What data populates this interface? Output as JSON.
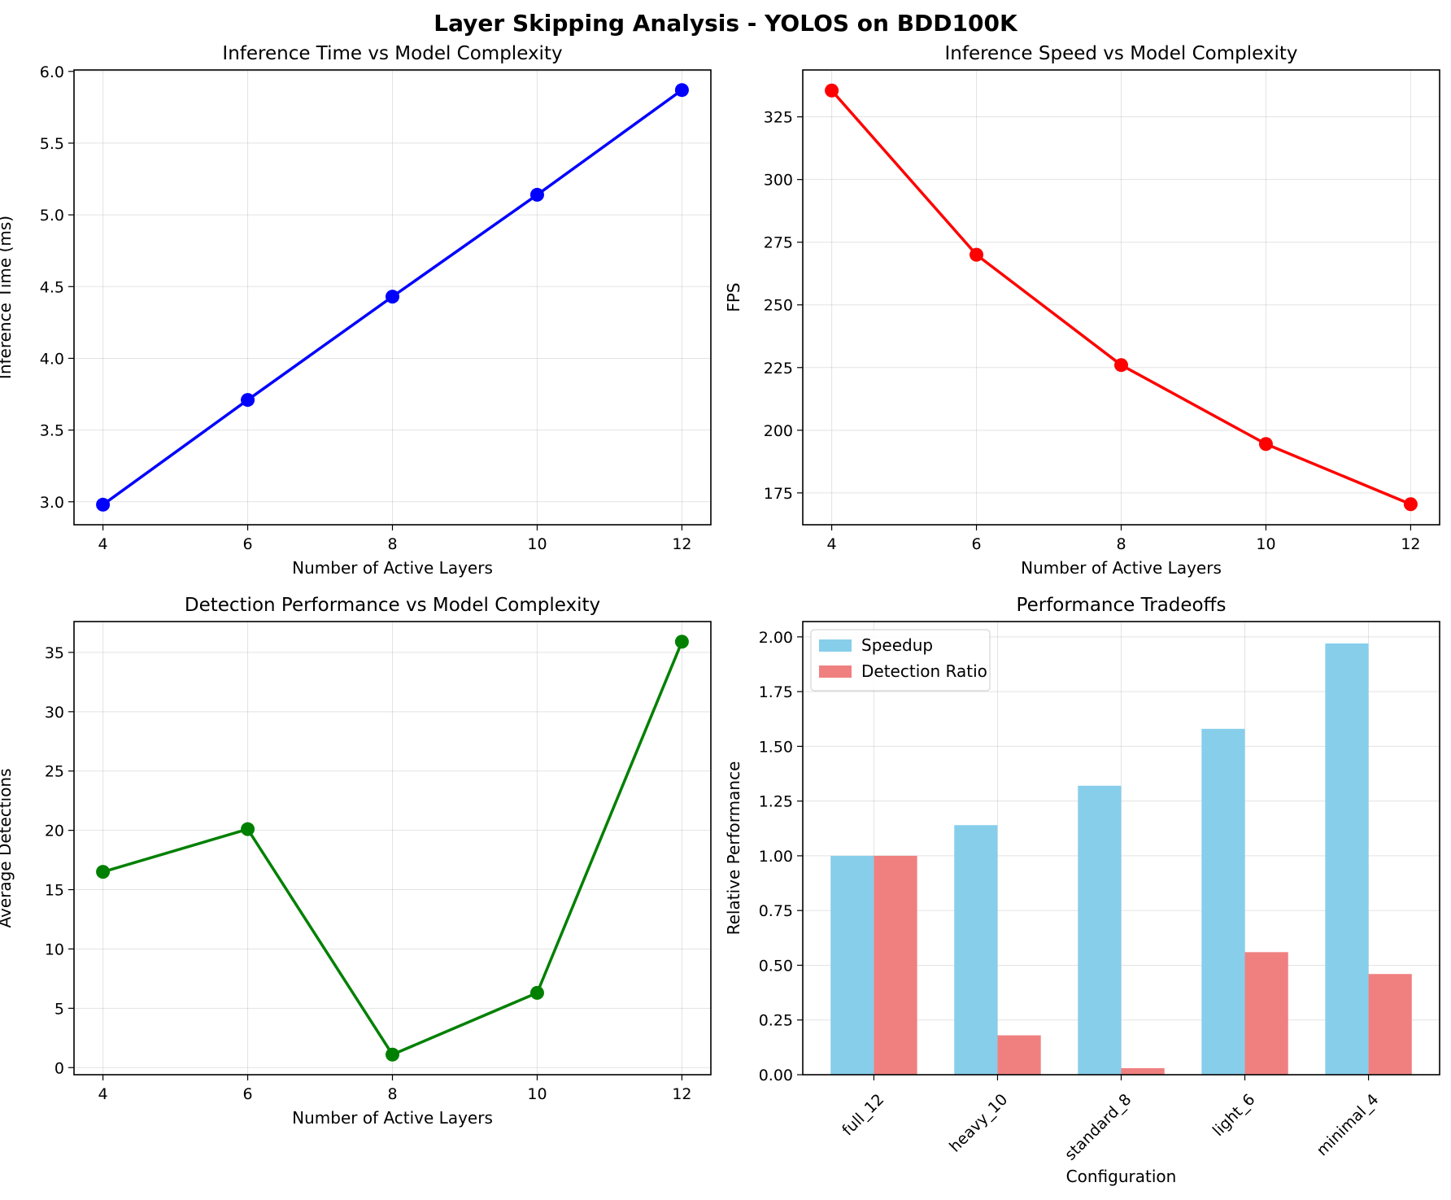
{
  "figure": {
    "title": "Layer Skipping Analysis - YOLOS on BDD100K"
  },
  "chart_data": [
    {
      "type": "line",
      "title": "Inference Time vs Model Complexity",
      "xlabel": "Number of Active Layers",
      "ylabel": "Inference Time (ms)",
      "x": [
        4,
        6,
        8,
        10,
        12
      ],
      "values": [
        2.98,
        3.71,
        4.43,
        5.14,
        5.87
      ],
      "xlim": [
        3.6,
        12.4
      ],
      "ylim": [
        2.84,
        6.01
      ],
      "xticks": [
        4,
        6,
        8,
        10,
        12
      ],
      "yticks": [
        3.0,
        3.5,
        4.0,
        4.5,
        5.0,
        5.5,
        6.0
      ],
      "ytick_decimals": 1,
      "color": "#0000ff",
      "grid": true
    },
    {
      "type": "line",
      "title": "Inference Speed vs Model Complexity",
      "xlabel": "Number of Active Layers",
      "ylabel": "FPS",
      "x": [
        4,
        6,
        8,
        10,
        12
      ],
      "values": [
        335.5,
        270.0,
        226.0,
        194.5,
        170.5
      ],
      "xlim": [
        3.6,
        12.4
      ],
      "ylim": [
        162.3,
        343.7
      ],
      "xticks": [
        4,
        6,
        8,
        10,
        12
      ],
      "yticks": [
        175,
        200,
        225,
        250,
        275,
        300,
        325
      ],
      "ytick_decimals": 0,
      "color": "#ff0000",
      "grid": true
    },
    {
      "type": "line",
      "title": "Detection Performance vs Model Complexity",
      "xlabel": "Number of Active Layers",
      "ylabel": "Average Detections",
      "x": [
        4,
        6,
        8,
        10,
        12
      ],
      "values": [
        16.5,
        20.1,
        1.1,
        6.3,
        35.9
      ],
      "xlim": [
        3.6,
        12.4
      ],
      "ylim": [
        -0.6,
        37.6
      ],
      "xticks": [
        4,
        6,
        8,
        10,
        12
      ],
      "yticks": [
        0,
        5,
        10,
        15,
        20,
        25,
        30,
        35
      ],
      "ytick_decimals": 0,
      "color": "#008000",
      "grid": true
    },
    {
      "type": "bar",
      "title": "Performance Tradeoffs",
      "xlabel": "Configuration",
      "ylabel": "Relative Performance",
      "categories": [
        "full_12",
        "heavy_10",
        "standard_8",
        "light_6",
        "minimal_4"
      ],
      "series": [
        {
          "name": "Speedup",
          "values": [
            1.0,
            1.14,
            1.32,
            1.58,
            1.97
          ],
          "color": "#87ceeb"
        },
        {
          "name": "Detection Ratio",
          "values": [
            1.0,
            0.18,
            0.03,
            0.56,
            0.46
          ],
          "color": "#f08080"
        }
      ],
      "ylim": [
        0,
        2.07
      ],
      "yticks": [
        0.0,
        0.25,
        0.5,
        0.75,
        1.0,
        1.25,
        1.5,
        1.75,
        2.0
      ],
      "ytick_decimals": 2,
      "legend": "top-left",
      "grid": true
    }
  ]
}
